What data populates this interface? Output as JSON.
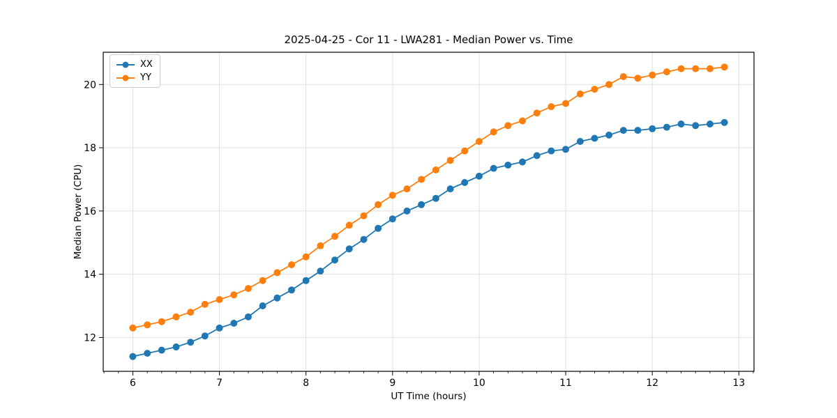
{
  "chart_data": {
    "type": "line",
    "title": "2025-04-25 - Cor 11 - LWA281 - Median Power vs. Time",
    "xlabel": "UT Time (hours)",
    "ylabel": "Median Power (CPU)",
    "xlim": [
      5.658,
      13.175
    ],
    "ylim": [
      10.93,
      21.02
    ],
    "xticks": [
      6,
      7,
      8,
      9,
      10,
      11,
      12,
      13
    ],
    "yticks": [
      12,
      14,
      16,
      18,
      20
    ],
    "x_minor_step": 0.16667,
    "grid": true,
    "grid_color": "#e0e0e0",
    "legend_position": "upper-left",
    "marker": "circle",
    "x": [
      6.0,
      6.167,
      6.333,
      6.5,
      6.667,
      6.833,
      7.0,
      7.167,
      7.333,
      7.5,
      7.667,
      7.833,
      8.0,
      8.167,
      8.333,
      8.5,
      8.667,
      8.833,
      9.0,
      9.167,
      9.333,
      9.5,
      9.667,
      9.833,
      10.0,
      10.167,
      10.333,
      10.5,
      10.667,
      10.833,
      11.0,
      11.167,
      11.333,
      11.5,
      11.667,
      11.833,
      12.0,
      12.167,
      12.333,
      12.5,
      12.667,
      12.833
    ],
    "series": [
      {
        "name": "XX",
        "color": "#1f77b4",
        "values": [
          11.4,
          11.5,
          11.6,
          11.7,
          11.85,
          12.05,
          12.3,
          12.45,
          12.65,
          13.0,
          13.25,
          13.5,
          13.8,
          14.1,
          14.45,
          14.8,
          15.1,
          15.45,
          15.75,
          16.0,
          16.2,
          16.4,
          16.7,
          16.9,
          17.1,
          17.35,
          17.45,
          17.55,
          17.75,
          17.9,
          17.95,
          18.2,
          18.3,
          18.4,
          18.55,
          18.55,
          18.6,
          18.65,
          18.75,
          18.7,
          18.75,
          18.8
        ]
      },
      {
        "name": "YY",
        "color": "#ff7f0e",
        "values": [
          12.3,
          12.4,
          12.5,
          12.65,
          12.8,
          13.05,
          13.2,
          13.35,
          13.55,
          13.8,
          14.05,
          14.3,
          14.55,
          14.9,
          15.2,
          15.55,
          15.85,
          16.2,
          16.5,
          16.7,
          17.0,
          17.3,
          17.6,
          17.9,
          18.2,
          18.5,
          18.7,
          18.85,
          19.1,
          19.3,
          19.4,
          19.7,
          19.85,
          20.0,
          20.25,
          20.2,
          20.3,
          20.4,
          20.5,
          20.5,
          20.5,
          20.55
        ]
      }
    ]
  }
}
